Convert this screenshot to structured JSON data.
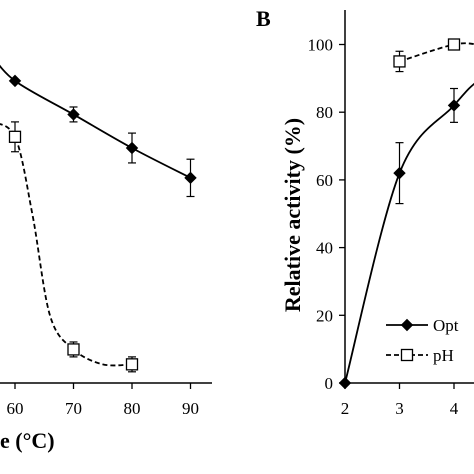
{
  "chart_data": [
    {
      "panel": "A (cropped)",
      "type": "line",
      "xlabel_fragment": "e (°C)",
      "x_ticks": [
        60,
        70,
        80,
        90
      ],
      "series": [
        {
          "marker": "diamond",
          "line_style": "solid",
          "x": [
            60,
            70,
            80,
            90
          ],
          "y": [
            0.81,
            0.72,
            0.63,
            0.55
          ],
          "error": [
            0.0,
            0.02,
            0.04,
            0.05
          ]
        },
        {
          "marker": "open-square",
          "line_style": "dashed",
          "x": [
            60,
            70,
            80
          ],
          "y": [
            0.66,
            0.09,
            0.05
          ],
          "error": [
            0.04,
            0.02,
            0.02
          ]
        }
      ]
    },
    {
      "panel": "B",
      "panel_label": "B",
      "type": "line",
      "ylabel": "Relative activity (%)",
      "ylim": [
        0,
        110
      ],
      "y_ticks": [
        0,
        20,
        40,
        60,
        80,
        100
      ],
      "x_ticks": [
        2,
        3,
        4
      ],
      "legend": {
        "position": "bottom-right",
        "entries": [
          {
            "label": "Opt",
            "marker": "diamond",
            "line_style": "solid"
          },
          {
            "label": "pH",
            "marker": "open-square",
            "line_style": "dashed"
          }
        ]
      },
      "series": [
        {
          "legend_label": "Opt",
          "marker": "diamond",
          "line_style": "solid",
          "x": [
            2,
            3,
            4,
            4.5
          ],
          "y": [
            0,
            62,
            82,
            90
          ],
          "error": [
            0,
            9,
            5,
            0
          ]
        },
        {
          "legend_label": "pH",
          "marker": "open-square",
          "line_style": "dashed",
          "x": [
            3,
            4,
            4.5
          ],
          "y": [
            95,
            100,
            100
          ],
          "error": [
            3,
            1,
            0
          ]
        }
      ]
    }
  ]
}
